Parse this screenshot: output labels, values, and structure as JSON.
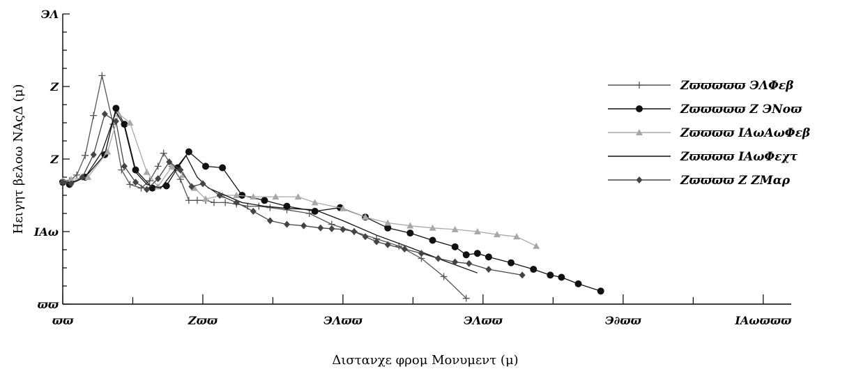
{
  "chart_data": {
    "type": "line",
    "title": "",
    "xlabel": "Διστανχε φρομ Μονυμεντ (μ)",
    "ylabel": "Ηειγητ βελοω ΝΑςΔ (μ)",
    "x_ticks": [
      "0",
      "250",
      "500",
      "750",
      "1000",
      "1250"
    ],
    "y_ticks": [
      "0",
      "100",
      "200",
      "300",
      "400"
    ],
    "y_tick_labels": [
      "ϖϖ",
      "ΙΑω",
      "Ζ",
      "Ζ",
      "ЭΛ"
    ],
    "x_tick_labels": [
      "ϖϖ",
      "Ζϖϖ",
      "ЭΛϖϖ",
      "ЭΛϖϖ",
      "Э∂ϖϖ",
      "ΙΑωϖϖϖ"
    ],
    "xlim": [
      0,
      1300
    ],
    "ylim": [
      0,
      400
    ],
    "grid": false,
    "legend_position": "right",
    "series": [
      {
        "name": "Ζϖϖϖϖϖ ЭΛΦεβ",
        "color": "#555555",
        "marker": "plus",
        "x": [
          0,
          12,
          25,
          40,
          55,
          70,
          90,
          105,
          120,
          140,
          155,
          170,
          180,
          195,
          210,
          225,
          240,
          255,
          270,
          290,
          310,
          330,
          350,
          370,
          400,
          440,
          480,
          520,
          560,
          600,
          640,
          680,
          720
        ],
        "y": [
          170,
          170,
          178,
          205,
          260,
          315,
          248,
          185,
          165,
          160,
          170,
          190,
          208,
          190,
          172,
          143,
          143,
          143,
          140,
          140,
          138,
          135,
          135,
          133,
          130,
          125,
          110,
          100,
          90,
          80,
          63,
          38,
          8
        ]
      },
      {
        "name": "Ζϖϖϖϖϖ Ζ ЭΝοϖ",
        "color": "#111111",
        "marker": "circle",
        "x": [
          0,
          12,
          40,
          75,
          95,
          110,
          130,
          160,
          185,
          205,
          225,
          255,
          285,
          320,
          360,
          400,
          450,
          495,
          540,
          580,
          620,
          660,
          700,
          720,
          740,
          760,
          800,
          840,
          870,
          890,
          920,
          960
        ],
        "y": [
          168,
          165,
          175,
          206,
          270,
          248,
          185,
          160,
          163,
          188,
          210,
          190,
          188,
          150,
          143,
          135,
          128,
          133,
          120,
          105,
          98,
          88,
          79,
          68,
          70,
          65,
          57,
          48,
          40,
          37,
          28,
          18
        ]
      },
      {
        "name": "Ζϖϖϖϖ ΙΑωΑωΦεβ",
        "color": "#a8a8a8",
        "marker": "triangle",
        "x": [
          0,
          15,
          45,
          80,
          100,
          120,
          150,
          170,
          195,
          215,
          235,
          255,
          285,
          310,
          340,
          380,
          420,
          450,
          500,
          540,
          580,
          620,
          660,
          700,
          740,
          775,
          810,
          845
        ],
        "y": [
          170,
          172,
          175,
          210,
          262,
          250,
          182,
          162,
          190,
          178,
          160,
          145,
          150,
          150,
          148,
          148,
          148,
          140,
          132,
          120,
          112,
          108,
          105,
          103,
          100,
          96,
          93,
          80
        ]
      },
      {
        "name": "Ζϖϖϖϖ ΙΑωΦεχτ",
        "color": "#111111",
        "marker": "none",
        "x": [
          0,
          15,
          40,
          70,
          95,
          110,
          130,
          150,
          175,
          200,
          220,
          240,
          260,
          290,
          320,
          360,
          400,
          450,
          500,
          560,
          620,
          680,
          740
        ],
        "y": [
          168,
          168,
          175,
          210,
          265,
          245,
          182,
          165,
          160,
          185,
          205,
          175,
          160,
          150,
          140,
          135,
          132,
          130,
          115,
          95,
          78,
          60,
          43
        ]
      },
      {
        "name": "Ζϖϖϖϖ Ζ ΖΜαρ",
        "color": "#444444",
        "marker": "diamond",
        "x": [
          0,
          15,
          35,
          55,
          75,
          95,
          110,
          130,
          150,
          170,
          190,
          210,
          230,
          250,
          280,
          310,
          340,
          370,
          400,
          430,
          460,
          480,
          500,
          520,
          540,
          560,
          580,
          610,
          640,
          670,
          700,
          725,
          760,
          820
        ],
        "y": [
          168,
          166,
          175,
          206,
          262,
          252,
          190,
          168,
          158,
          173,
          196,
          185,
          162,
          166,
          150,
          140,
          128,
          115,
          110,
          108,
          105,
          104,
          103,
          100,
          93,
          86,
          82,
          76,
          70,
          63,
          58,
          56,
          48,
          40
        ]
      }
    ]
  }
}
